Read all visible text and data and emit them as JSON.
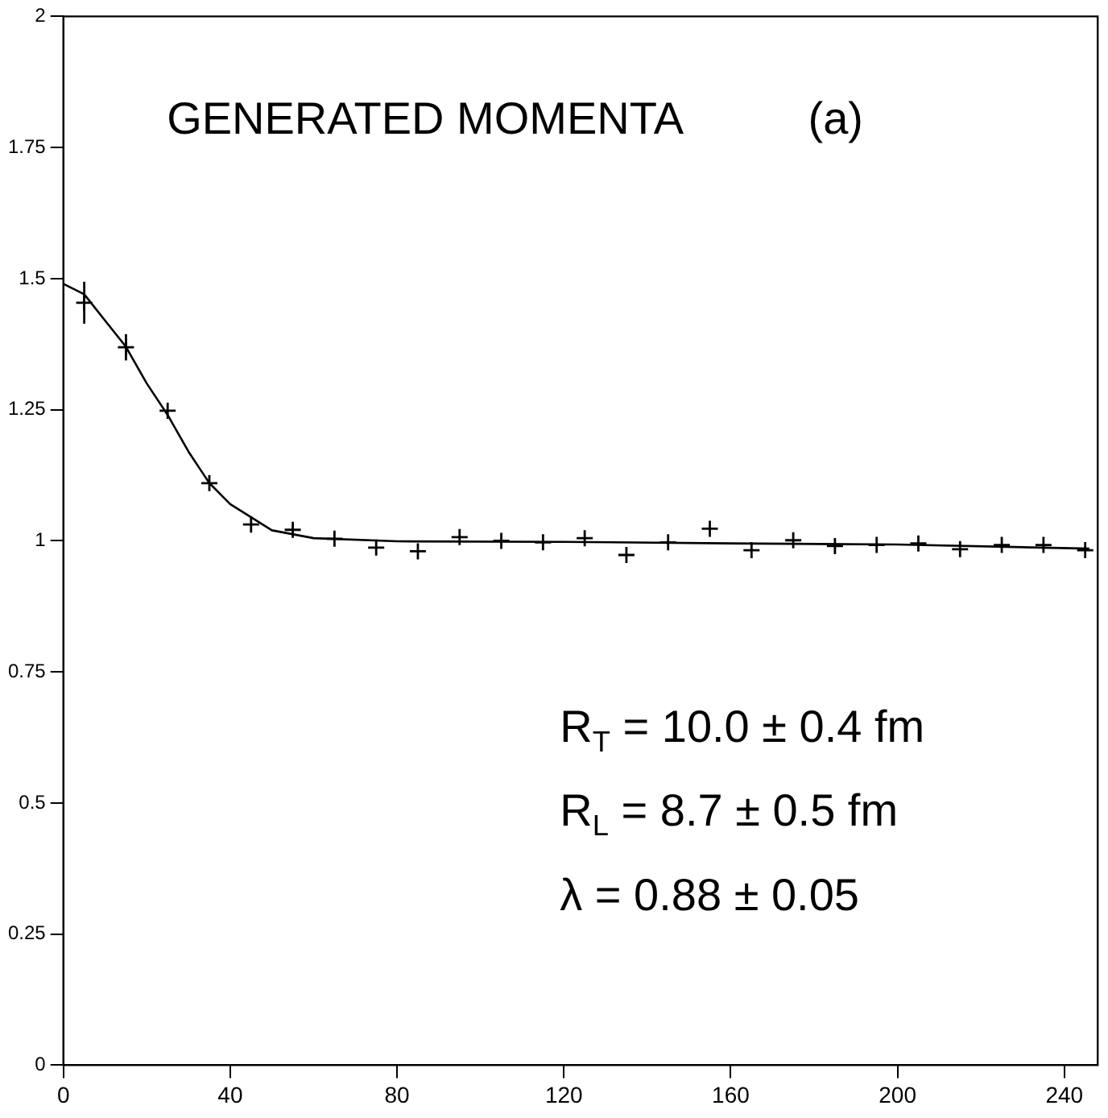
{
  "chart_data": {
    "type": "scatter",
    "annotations": [
      "GENERATED MOMENTA",
      "(a)",
      "R$_{T}$ = 10.0 ± 0.4 fm",
      "R$_{L}$ = 8.7 ± 0.5 fm",
      "λ = 0.88 ± 0.05"
    ],
    "xlim": [
      0,
      248
    ],
    "xticks": [
      0,
      40,
      80,
      120,
      160,
      200,
      240
    ],
    "ylim": [
      0,
      2
    ],
    "yticks": [
      0,
      0.25,
      0.5,
      0.75,
      1,
      1.25,
      1.5,
      1.75,
      2
    ],
    "grid": false,
    "legend": false,
    "marker": "cross",
    "series": [
      {
        "type": "scatter",
        "color": "#000000",
        "x": [
          5,
          15,
          25,
          35,
          45,
          55,
          65,
          75,
          85,
          95,
          105,
          115,
          125,
          135,
          145,
          155,
          165,
          175,
          185,
          195,
          205,
          215,
          225,
          235,
          245
        ],
        "values": [
          1.454,
          1.369,
          1.248,
          1.11,
          1.031,
          1.021,
          1.004,
          0.987,
          0.98,
          1.007,
          1.0,
          0.997,
          1.005,
          0.973,
          0.997,
          1.023,
          0.982,
          1.001,
          0.99,
          0.992,
          0.995,
          0.984,
          0.992,
          0.992,
          0.982
        ],
        "errors": [
          0.04,
          0.025,
          null,
          null,
          null,
          null,
          null,
          null,
          null,
          null,
          null,
          null,
          null,
          null,
          null,
          null,
          null,
          null,
          null,
          null,
          null,
          null,
          null,
          null,
          null
        ]
      },
      {
        "type": "line",
        "color": "#000000",
        "line_style": "solid",
        "marker": "none",
        "x": [
          0,
          5,
          10,
          15,
          20,
          25,
          30,
          35,
          40,
          50,
          60,
          80,
          120,
          160,
          200,
          246
        ],
        "values": [
          1.49,
          1.47,
          1.42,
          1.37,
          1.3,
          1.24,
          1.17,
          1.11,
          1.07,
          1.02,
          1.005,
          0.999,
          0.998,
          0.995,
          0.993,
          0.985
        ]
      }
    ]
  }
}
